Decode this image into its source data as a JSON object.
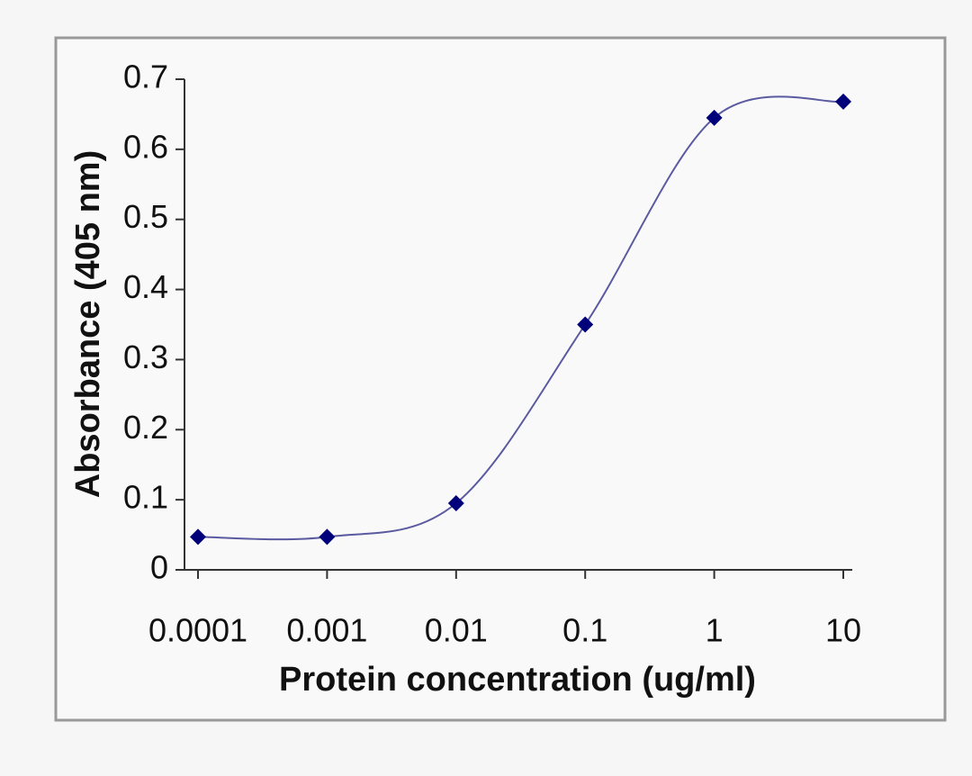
{
  "chart_data": {
    "type": "line",
    "x_label": "Protein concentration (ug/ml)",
    "y_label": "Absorbance (405 nm)",
    "x": [
      0.0001,
      0.001,
      0.01,
      0.1,
      1,
      10
    ],
    "series": [
      {
        "color": "#00007a",
        "values": [
          0.047,
          0.047,
          0.095,
          0.35,
          0.645,
          0.668
        ]
      }
    ],
    "xscale": "log",
    "xlim": [
      0.0001,
      10
    ],
    "xticks": [
      0.0001,
      0.001,
      0.01,
      0.1,
      1,
      10
    ],
    "ylim": [
      0,
      0.7
    ],
    "yticks": [
      0,
      0.1,
      0.2,
      0.3,
      0.4,
      0.5,
      0.6,
      0.7
    ],
    "smooth": true,
    "grid": false
  }
}
